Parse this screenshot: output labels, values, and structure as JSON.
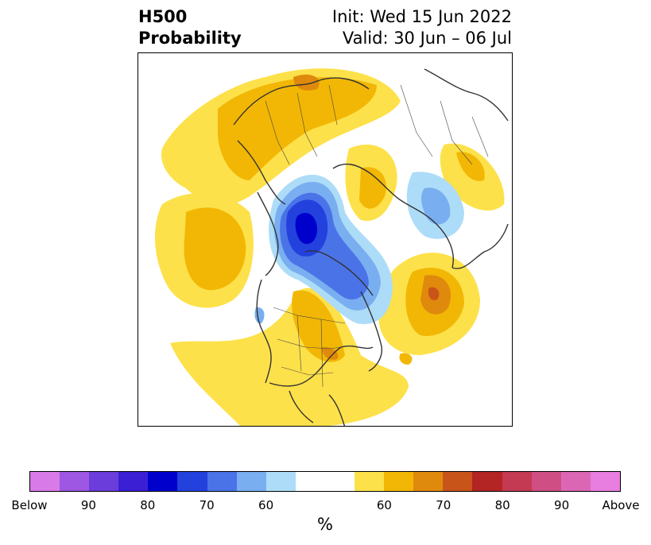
{
  "title": {
    "left_line1": "H500",
    "left_line2": "Probability",
    "right_line1": "Init: Wed 15 Jun 2022",
    "right_line2": "Valid: 30 Jun – 06 Jul"
  },
  "colorbar": {
    "colors": [
      "#d87be8",
      "#9d57e3",
      "#6b3ddb",
      "#3a1fd4",
      "#0000cc",
      "#2241dd",
      "#4a73e8",
      "#79aef0",
      "#addcf8",
      "#ffffff",
      "#ffffff",
      "#fde14a",
      "#f2b705",
      "#df8a0c",
      "#c9541a",
      "#b32424",
      "#c43a52",
      "#cf4f84",
      "#db66b4",
      "#e77ee0"
    ],
    "tick_labels": [
      "Below",
      "90",
      "80",
      "70",
      "60",
      "60",
      "70",
      "80",
      "90",
      "Above"
    ],
    "unit": "%"
  }
}
